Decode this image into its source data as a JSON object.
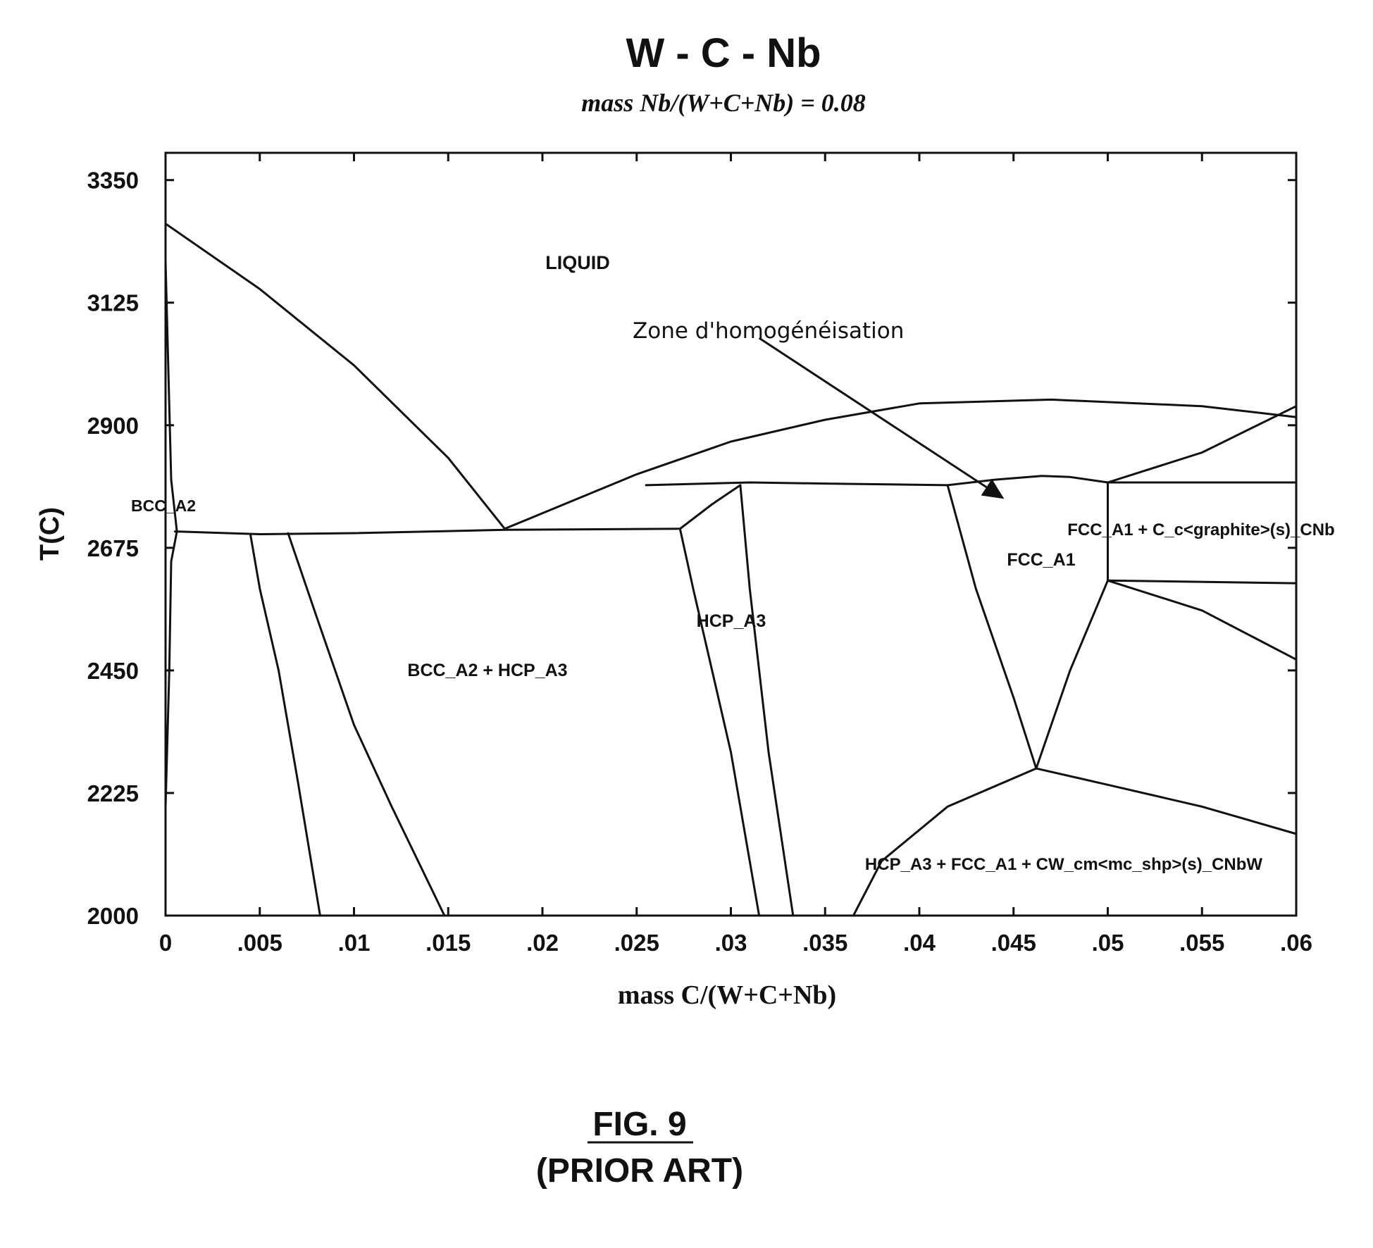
{
  "chart_data": {
    "type": "line",
    "title": "W - C - Nb",
    "subtitle": "mass Nb/(W+C+Nb) = 0.08",
    "xlabel": "mass C/(W+C+Nb)",
    "ylabel": "T(C)",
    "xlim": [
      0,
      0.06
    ],
    "ylim": [
      2000,
      3400
    ],
    "xticks": [
      "0",
      ".005",
      ".01",
      ".015",
      ".02",
      ".025",
      ".03",
      ".035",
      ".04",
      ".045",
      ".05",
      ".055",
      ".06"
    ],
    "yticks": [
      "2000",
      "2225",
      "2450",
      "2675",
      "2900",
      "3125",
      "3350"
    ],
    "grid": false,
    "legend": "none",
    "series": [
      {
        "x": [
          0,
          0.005,
          0.01,
          0.015,
          0.018
        ],
        "y": [
          3270,
          3150,
          3010,
          2840,
          2710
        ]
      },
      {
        "x": [
          0.018,
          0.025,
          0.03,
          0.035,
          0.04,
          0.047,
          0.055,
          0.06
        ],
        "y": [
          2710,
          2810,
          2870,
          2910,
          2940,
          2947,
          2935,
          2915
        ]
      },
      {
        "x": [
          0.0005,
          0.005,
          0.01,
          0.018,
          0.0273
        ],
        "y": [
          2705,
          2700,
          2702,
          2708,
          2710
        ]
      },
      {
        "x": [
          0.0255,
          0.031,
          0.035,
          0.0415
        ],
        "y": [
          2790,
          2795,
          2793,
          2790
        ]
      },
      {
        "x": [
          0.0415,
          0.044,
          0.0465,
          0.048,
          0.05
        ],
        "y": [
          2790,
          2800,
          2807,
          2805,
          2795
        ]
      },
      {
        "x": [
          0.05,
          0.055,
          0.06
        ],
        "y": [
          2795,
          2850,
          2935
        ]
      },
      {
        "x": [
          0.05,
          0.06
        ],
        "y": [
          2795,
          2795
        ]
      },
      {
        "x": [
          0.0273,
          0.029,
          0.0305
        ],
        "y": [
          2710,
          2755,
          2790
        ]
      },
      {
        "x": [
          0.0273,
          0.028,
          0.029,
          0.03,
          0.0315
        ],
        "y": [
          2710,
          2600,
          2450,
          2300,
          2000
        ]
      },
      {
        "x": [
          0.0305,
          0.031,
          0.032,
          0.0333
        ],
        "y": [
          2790,
          2600,
          2300,
          2000
        ]
      },
      {
        "x": [
          0.0415,
          0.043,
          0.045,
          0.0462
        ],
        "y": [
          2790,
          2600,
          2400,
          2270
        ]
      },
      {
        "x": [
          0.0462,
          0.048,
          0.05
        ],
        "y": [
          2270,
          2450,
          2615
        ]
      },
      {
        "x": [
          0.05,
          0.05
        ],
        "y": [
          2795,
          2615
        ]
      },
      {
        "x": [
          0.05,
          0.06
        ],
        "y": [
          2615,
          2610
        ]
      },
      {
        "x": [
          0.05,
          0.055,
          0.06
        ],
        "y": [
          2615,
          2560,
          2470
        ]
      },
      {
        "x": [
          0.0462,
          0.05,
          0.055,
          0.06
        ],
        "y": [
          2270,
          2240,
          2200,
          2150
        ]
      },
      {
        "x": [
          0.0365,
          0.038,
          0.0415,
          0.0462
        ],
        "y": [
          2000,
          2100,
          2200,
          2270
        ]
      },
      {
        "x": [
          0.0045,
          0.005,
          0.006,
          0.007,
          0.0082
        ],
        "y": [
          2700,
          2600,
          2450,
          2250,
          2000
        ]
      },
      {
        "x": [
          0.0065,
          0.008,
          0.01,
          0.012,
          0.0148
        ],
        "y": [
          2702,
          2550,
          2350,
          2200,
          2000
        ]
      },
      {
        "x": [
          0,
          0.0003,
          0.0006
        ],
        "y": [
          3200,
          2800,
          2705
        ]
      },
      {
        "x": [
          0,
          0.0002,
          0.0003,
          0.0006
        ],
        "y": [
          2200,
          2450,
          2650,
          2705
        ]
      }
    ],
    "annotations": [
      {
        "text": "LIQUID",
        "x": 0.0215,
        "y": 3185
      },
      {
        "text": "Zone d'homogénéisation",
        "x": 0.0315,
        "y": 3060,
        "arrow_to": [
          0.0445,
          2765
        ]
      },
      {
        "text": "BCC_A2",
        "x": 0.001,
        "y": 2740
      },
      {
        "text": "BCC_A2 + HCP_A3",
        "x": 0.0205,
        "y": 2450
      },
      {
        "text": "HCP_A3",
        "x": 0.0301,
        "y": 2540
      },
      {
        "text": "FCC_A1",
        "x": 0.0475,
        "y": 2660
      },
      {
        "text": "FCC_A1 + C_c<graphite>(s)_CNb",
        "x": 0.0545,
        "y": 2710
      },
      {
        "text": "HCP_A3 + FCC_A1 + CW_cm<mc_shp>(s)_CNbW",
        "x": 0.0478,
        "y": 2080
      }
    ]
  },
  "figure": {
    "number": "FIG. 9",
    "note": "(PRIOR ART)"
  }
}
